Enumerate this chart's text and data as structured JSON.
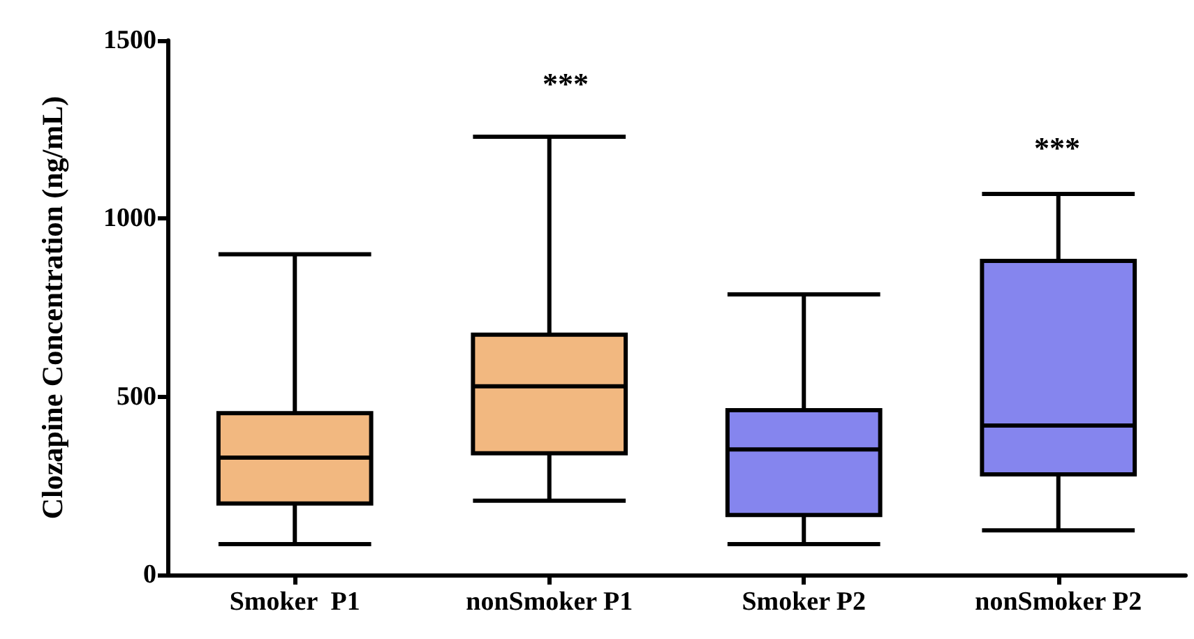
{
  "chart_data": {
    "type": "box",
    "ylabel": "Clozapine Concentration (ng/mL)",
    "categories": [
      "Smoker  P1",
      "nonSmoker P1",
      "Smoker P2",
      "nonSmoker P2"
    ],
    "boxes": [
      {
        "low": 86,
        "q1": 200,
        "median": 329,
        "q3": 454,
        "high": 900
      },
      {
        "low": 208,
        "q1": 341,
        "median": 529,
        "q3": 674,
        "high": 1230
      },
      {
        "low": 86,
        "q1": 168,
        "median": 352,
        "q3": 462,
        "high": 787
      },
      {
        "low": 125,
        "q1": 282,
        "median": 419,
        "q3": 881,
        "high": 1069
      }
    ],
    "colors": [
      "#f2b880",
      "#f2b880",
      "#8585ee",
      "#8585ee"
    ],
    "ylim": [
      0,
      1500
    ],
    "yticks": [
      0,
      500,
      1000,
      1500
    ],
    "grid": false,
    "annotations": [
      "***",
      "***"
    ]
  }
}
